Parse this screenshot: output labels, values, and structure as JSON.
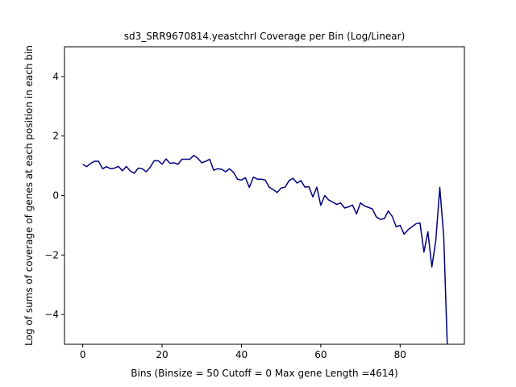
{
  "chart_data": {
    "type": "line",
    "title": "sd3_SRR9670814.yeastchrI Coverage per Bin (Log/Linear)",
    "xlabel": "Bins  (Binsize = 50 Cutoff = 0 Max gene Length =4614)",
    "ylabel": "Log of sums of coverage of genes at each position in each bin",
    "xlim": [
      -4.6,
      96.2
    ],
    "ylim": [
      -5,
      5
    ],
    "xticks": [
      0,
      20,
      40,
      60,
      80
    ],
    "yticks": [
      -4,
      -2,
      0,
      2,
      4
    ],
    "grid": false,
    "line_color": "#000080",
    "series": [
      {
        "name": "",
        "x": [
          0,
          1,
          2,
          3,
          4,
          5,
          6,
          7,
          8,
          9,
          10,
          11,
          12,
          13,
          14,
          15,
          16,
          17,
          18,
          19,
          20,
          21,
          22,
          23,
          24,
          25,
          26,
          27,
          28,
          29,
          30,
          31,
          32,
          33,
          34,
          35,
          36,
          37,
          38,
          39,
          40,
          41,
          42,
          43,
          44,
          45,
          46,
          47,
          48,
          49,
          50,
          51,
          52,
          53,
          54,
          55,
          56,
          57,
          58,
          59,
          60,
          61,
          62,
          63,
          64,
          65,
          66,
          67,
          68,
          69,
          70,
          71,
          72,
          73,
          74,
          75,
          76,
          77,
          78,
          79,
          80,
          81,
          82,
          83,
          84,
          85,
          86,
          87,
          88,
          89,
          90,
          91,
          92
        ],
        "values": [
          1.05,
          0.97,
          1.08,
          1.15,
          1.15,
          0.9,
          0.97,
          0.9,
          0.92,
          0.98,
          0.83,
          0.98,
          0.82,
          0.75,
          0.92,
          0.9,
          0.8,
          0.95,
          1.17,
          1.17,
          1.05,
          1.23,
          1.08,
          1.1,
          1.05,
          1.22,
          1.22,
          1.22,
          1.35,
          1.25,
          1.1,
          1.15,
          1.22,
          0.85,
          0.9,
          0.88,
          0.8,
          0.9,
          0.78,
          0.55,
          0.52,
          0.6,
          0.27,
          0.62,
          0.55,
          0.55,
          0.52,
          0.28,
          0.2,
          0.1,
          0.25,
          0.28,
          0.5,
          0.58,
          0.42,
          0.5,
          0.28,
          0.3,
          -0.05,
          0.28,
          -0.33,
          0.0,
          -0.15,
          -0.22,
          -0.3,
          -0.25,
          -0.42,
          -0.38,
          -0.32,
          -0.62,
          -0.25,
          -0.35,
          -0.4,
          -0.45,
          -0.72,
          -0.8,
          -0.78,
          -0.52,
          -0.7,
          -1.05,
          -1.0,
          -1.3,
          -1.15,
          -1.05,
          -0.95,
          -0.92,
          -1.9,
          -1.22,
          -2.4,
          -1.5,
          0.27,
          -1.4,
          -5.5
        ]
      }
    ]
  }
}
